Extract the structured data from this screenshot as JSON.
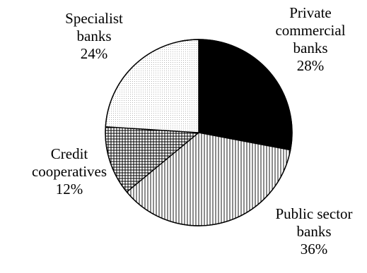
{
  "chart_data": {
    "type": "pie",
    "title": "",
    "slices": [
      {
        "label": [
          "Private",
          "commercial",
          "banks"
        ],
        "percent_label": "28%",
        "value": 28,
        "pattern": "solid-black"
      },
      {
        "label": [
          "Public sector",
          "banks"
        ],
        "percent_label": "36%",
        "value": 36,
        "pattern": "vertical-lines"
      },
      {
        "label": [
          "Credit",
          "cooperatives"
        ],
        "percent_label": "12%",
        "value": 12,
        "pattern": "crosshatch"
      },
      {
        "label": [
          "Specialist",
          "banks"
        ],
        "percent_label": "24%",
        "value": 24,
        "pattern": "dotted"
      }
    ],
    "start_angle_deg": 0,
    "direction": "clockwise-from-top"
  }
}
